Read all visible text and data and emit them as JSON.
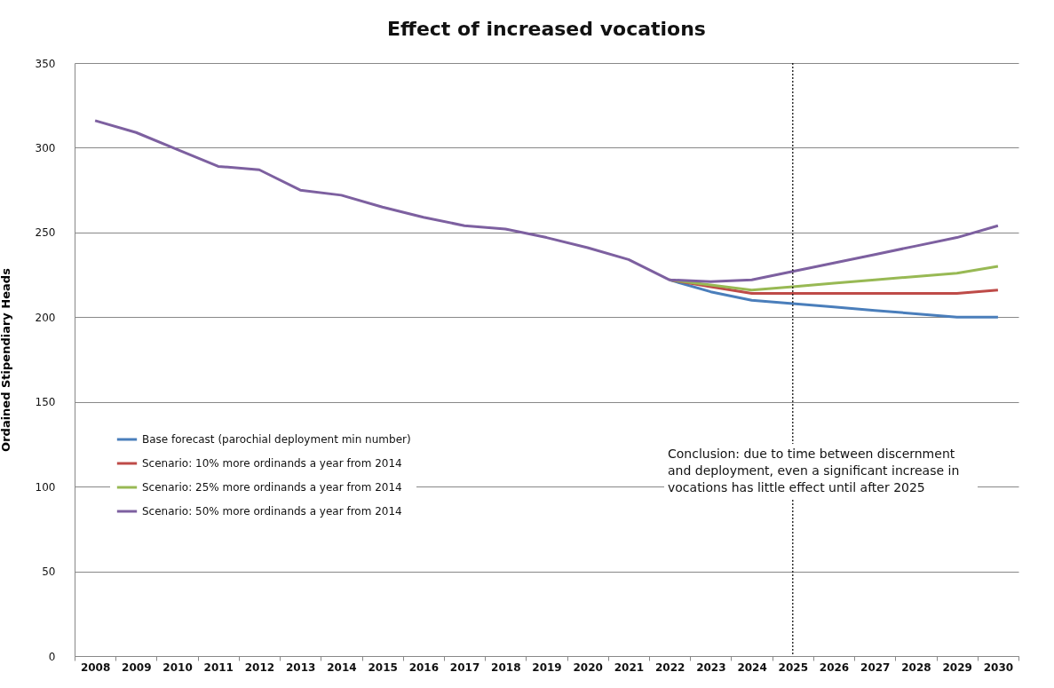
{
  "chart_data": {
    "type": "line",
    "title": "Effect of increased vocations",
    "ylabel": "Ordained Stipendiary Heads",
    "categories": [
      "2008",
      "2009",
      "2010",
      "2011",
      "2012",
      "2013",
      "2014",
      "2015",
      "2016",
      "2017",
      "2018",
      "2019",
      "2020",
      "2021",
      "2022",
      "2023",
      "2024",
      "2025",
      "2026",
      "2027",
      "2028",
      "2029",
      "2030"
    ],
    "series": [
      {
        "name": "Base forecast (parochial deployment min number)",
        "color": "#4a7ebb",
        "values": [
          null,
          null,
          null,
          null,
          null,
          null,
          null,
          null,
          null,
          null,
          null,
          null,
          null,
          null,
          222,
          215,
          210,
          208,
          206,
          204,
          202,
          200,
          200
        ]
      },
      {
        "name": "Scenario: 10% more ordinands a year from 2014",
        "color": "#be4b48",
        "values": [
          null,
          null,
          null,
          null,
          null,
          null,
          null,
          null,
          null,
          null,
          null,
          null,
          null,
          null,
          222,
          218,
          214,
          214,
          214,
          214,
          214,
          214,
          216
        ]
      },
      {
        "name": "Scenario: 25% more ordinands a year from 2014",
        "color": "#98b954",
        "values": [
          null,
          null,
          null,
          null,
          null,
          null,
          null,
          null,
          null,
          null,
          null,
          null,
          null,
          null,
          222,
          219,
          216,
          218,
          220,
          222,
          224,
          226,
          230
        ]
      },
      {
        "name": "Scenario: 50% more ordinands a year from 2014",
        "color": "#7d60a0",
        "values": [
          316,
          309,
          299,
          289,
          287,
          275,
          272,
          265,
          259,
          254,
          252,
          247,
          241,
          234,
          222,
          221,
          222,
          227,
          232,
          237,
          242,
          247,
          254
        ]
      }
    ],
    "ylim": [
      0,
      350
    ],
    "yticks": [
      0,
      50,
      100,
      150,
      200,
      250,
      300,
      350
    ],
    "grid": "y",
    "legend": "bottom left",
    "line_style": "solid",
    "marker": "none",
    "ref_lines": [
      {
        "axis": "x",
        "value": "2025",
        "color": "#000000",
        "line_style": "dotted"
      }
    ],
    "annotations": [
      "Conclusion: due to time between discernment and deployment, even a significant increase in vocations has little effect until after 2025"
    ]
  }
}
